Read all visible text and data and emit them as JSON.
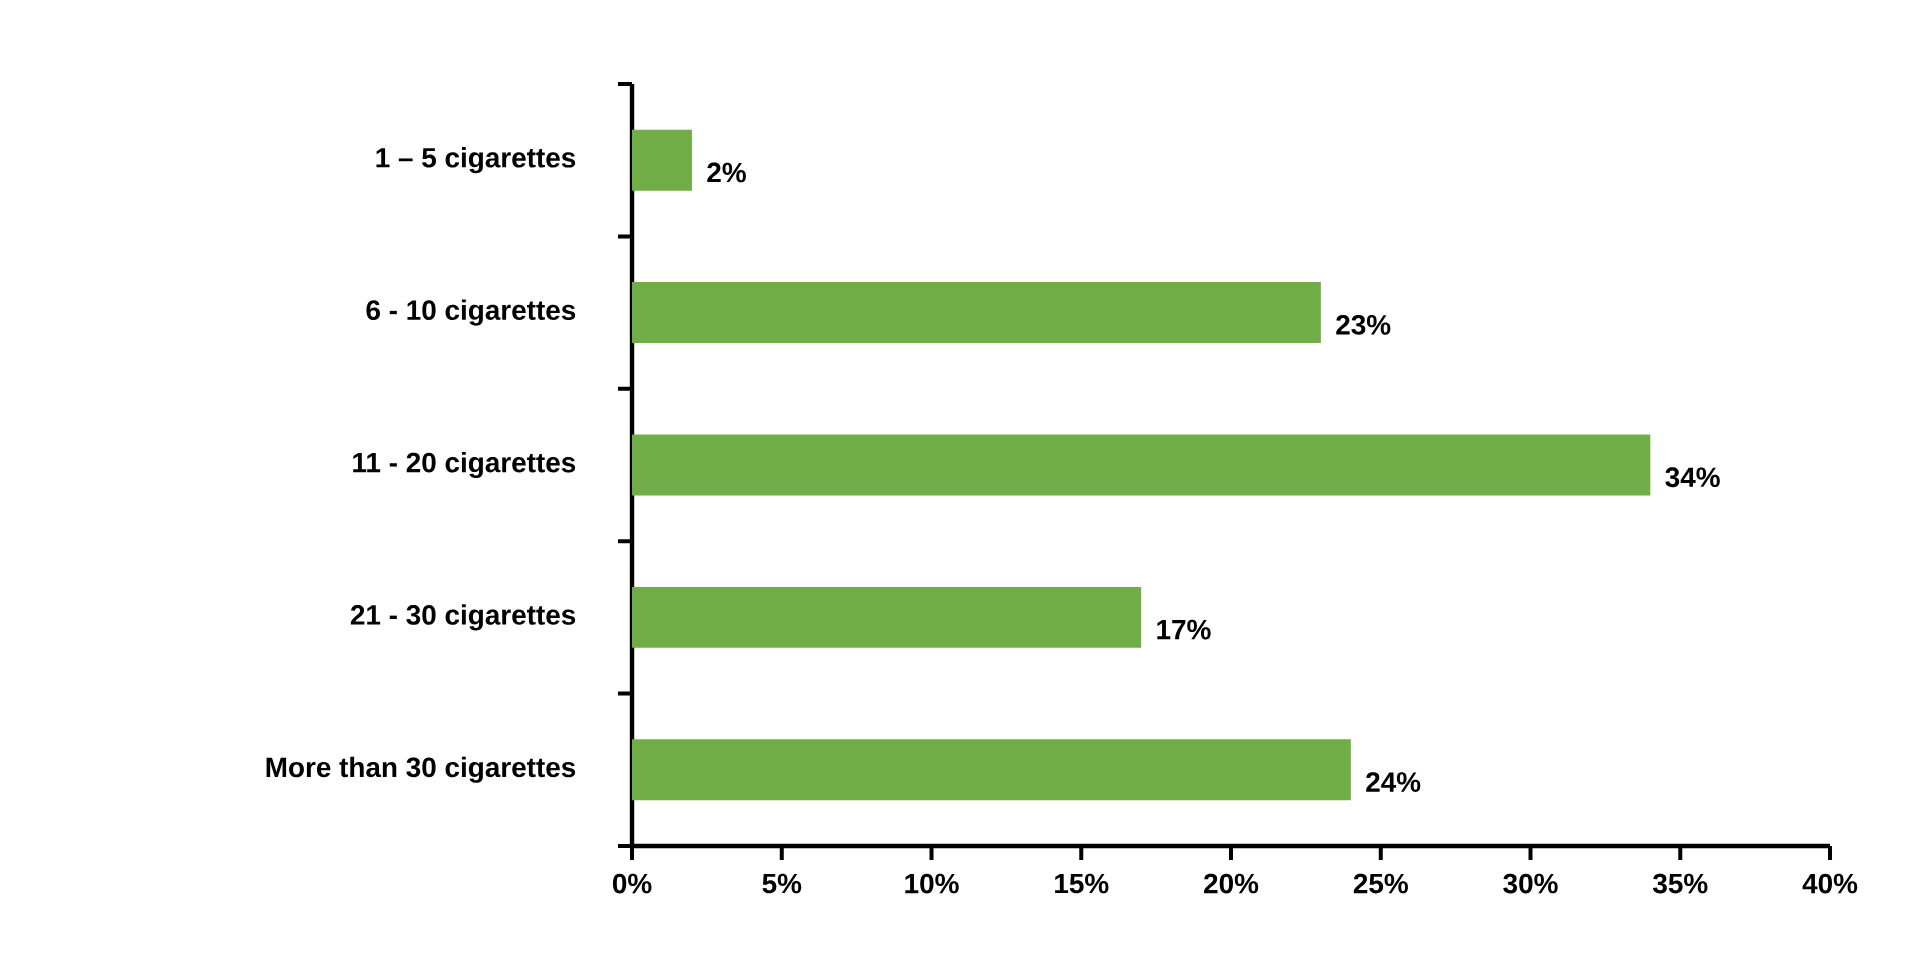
{
  "chart_data": {
    "type": "bar",
    "orientation": "horizontal",
    "categories": [
      "1 – 5 cigarettes",
      "6 - 10 cigarettes",
      "11 - 20 cigarettes",
      "21 - 30 cigarettes",
      "More than 30 cigarettes"
    ],
    "values": [
      2,
      23,
      34,
      17,
      24
    ],
    "value_labels": [
      "2%",
      "23%",
      "34%",
      "17%",
      "24%"
    ],
    "color": "#70ad47",
    "xlim": [
      0,
      40
    ],
    "xticks": [
      {
        "value": 0,
        "label": "0%"
      },
      {
        "value": 5,
        "label": "5%"
      },
      {
        "value": 10,
        "label": "10%"
      },
      {
        "value": 15,
        "label": "15%"
      },
      {
        "value": 20,
        "label": "20%"
      },
      {
        "value": 25,
        "label": "25%"
      },
      {
        "value": 30,
        "label": "30%"
      },
      {
        "value": 35,
        "label": "35%"
      },
      {
        "value": 40,
        "label": "40%"
      }
    ],
    "grid": false
  }
}
